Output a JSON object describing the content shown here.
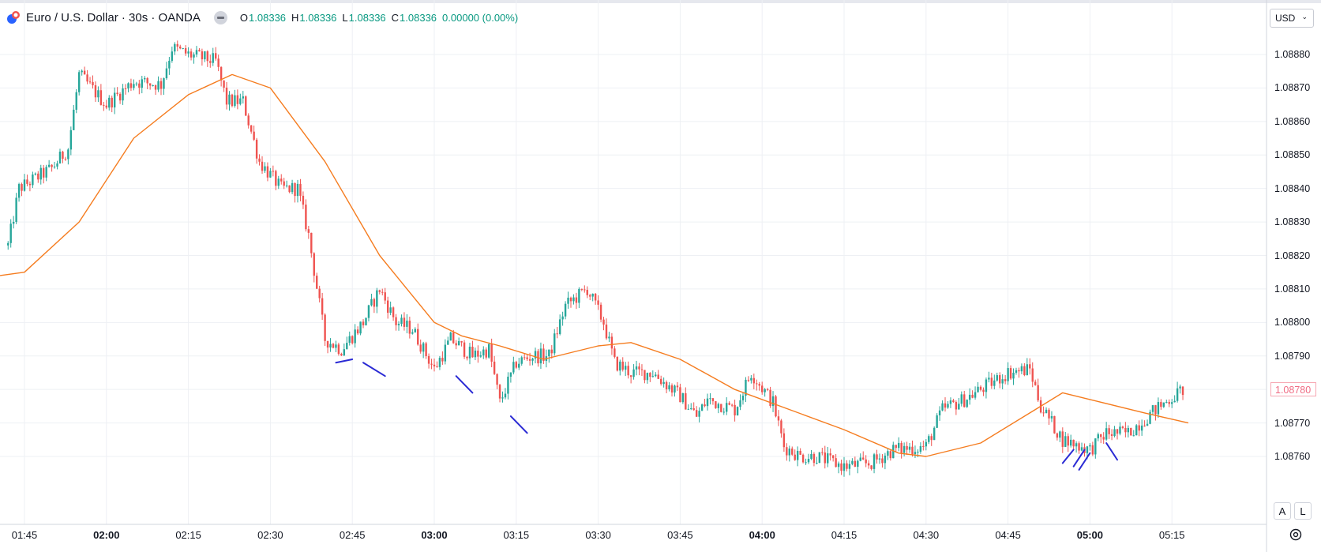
{
  "header": {
    "title": "Euro / U.S. Dollar · 30s · OANDA",
    "ohlc": [
      {
        "label": "O",
        "value": "1.08336"
      },
      {
        "label": "H",
        "value": "1.08336"
      },
      {
        "label": "L",
        "value": "1.08336"
      },
      {
        "label": "C",
        "value": "1.08336"
      },
      {
        "label": "",
        "value": "0.00000 (0.00%)"
      }
    ]
  },
  "currency": {
    "label": "USD"
  },
  "buttons": {
    "auto": "A",
    "log": "L"
  },
  "current_price": "1.08780",
  "colors": {
    "up": "#26a69a",
    "down": "#ef5350",
    "ma": "#f57c1f",
    "annotation": "#2a2ad4",
    "grid": "#eef0f4",
    "price_tag": "#f06c84"
  },
  "chart_data": {
    "type": "candlestick",
    "yticks": [
      "1.08880",
      "1.08870",
      "1.08860",
      "1.08850",
      "1.08840",
      "1.08830",
      "1.08820",
      "1.08810",
      "1.08800",
      "1.08790",
      "1.08780",
      "1.08770",
      "1.08760"
    ],
    "xticks": [
      {
        "label": "01:45",
        "bold": false
      },
      {
        "label": "02:00",
        "bold": true
      },
      {
        "label": "02:15",
        "bold": false
      },
      {
        "label": "02:30",
        "bold": false
      },
      {
        "label": "02:45",
        "bold": false
      },
      {
        "label": "03:00",
        "bold": true
      },
      {
        "label": "03:15",
        "bold": false
      },
      {
        "label": "03:30",
        "bold": false
      },
      {
        "label": "03:45",
        "bold": false
      },
      {
        "label": "04:00",
        "bold": true
      },
      {
        "label": "04:15",
        "bold": false
      },
      {
        "label": "04:30",
        "bold": false
      },
      {
        "label": "04:45",
        "bold": false
      },
      {
        "label": "05:00",
        "bold": true
      },
      {
        "label": "05:15",
        "bold": false
      }
    ],
    "price_path": [
      [
        "01:42",
        1.08823
      ],
      [
        "01:44",
        1.0884
      ],
      [
        "01:50",
        1.08846
      ],
      [
        "01:53",
        1.08852
      ],
      [
        "01:55",
        1.08874
      ],
      [
        "02:00",
        1.08865
      ],
      [
        "02:05",
        1.08872
      ],
      [
        "02:10",
        1.08871
      ],
      [
        "02:12",
        1.08882
      ],
      [
        "02:15",
        1.0888
      ],
      [
        "02:20",
        1.08878
      ],
      [
        "02:22",
        1.08866
      ],
      [
        "02:25",
        1.08866
      ],
      [
        "02:28",
        1.08848
      ],
      [
        "02:32",
        1.0884
      ],
      [
        "02:35",
        1.0884
      ],
      [
        "02:37",
        1.08826
      ],
      [
        "02:40",
        1.08795
      ],
      [
        "02:43",
        1.08792
      ],
      [
        "02:47",
        1.088
      ],
      [
        "02:50",
        1.0881
      ],
      [
        "02:53",
        1.088
      ],
      [
        "02:56",
        1.08798
      ],
      [
        "03:00",
        1.08786
      ],
      [
        "03:03",
        1.08795
      ],
      [
        "03:07",
        1.0879
      ],
      [
        "03:10",
        1.08792
      ],
      [
        "03:12",
        1.08776
      ],
      [
        "03:15",
        1.08788
      ],
      [
        "03:18",
        1.0879
      ],
      [
        "03:21",
        1.0879
      ],
      [
        "03:24",
        1.08805
      ],
      [
        "03:28",
        1.0881
      ],
      [
        "03:31",
        1.088
      ],
      [
        "03:33",
        1.08788
      ],
      [
        "03:36",
        1.08785
      ],
      [
        "03:40",
        1.08785
      ],
      [
        "03:45",
        1.08778
      ],
      [
        "03:48",
        1.08772
      ],
      [
        "03:50",
        1.08777
      ],
      [
        "03:55",
        1.08774
      ],
      [
        "03:58",
        1.08785
      ],
      [
        "04:02",
        1.08776
      ],
      [
        "04:04",
        1.08763
      ],
      [
        "04:07",
        1.0876
      ],
      [
        "04:10",
        1.0876
      ],
      [
        "04:15",
        1.08757
      ],
      [
        "04:20",
        1.08758
      ],
      [
        "04:24",
        1.08762
      ],
      [
        "04:30",
        1.08763
      ],
      [
        "04:33",
        1.08774
      ],
      [
        "04:37",
        1.08777
      ],
      [
        "04:40",
        1.0878
      ],
      [
        "04:45",
        1.08785
      ],
      [
        "04:49",
        1.08786
      ],
      [
        "04:51",
        1.08775
      ],
      [
        "04:55",
        1.08765
      ],
      [
        "05:00",
        1.08762
      ],
      [
        "05:03",
        1.08767
      ],
      [
        "05:07",
        1.08767
      ],
      [
        "05:12",
        1.08774
      ],
      [
        "05:17",
        1.0878
      ]
    ],
    "moving_average": [
      [
        "01:45",
        1.08815
      ],
      [
        "01:55",
        1.0883
      ],
      [
        "02:05",
        1.08855
      ],
      [
        "02:15",
        1.08868
      ],
      [
        "02:23",
        1.08874
      ],
      [
        "02:30",
        1.0887
      ],
      [
        "02:40",
        1.08848
      ],
      [
        "02:50",
        1.0882
      ],
      [
        "03:00",
        1.088
      ],
      [
        "03:05",
        1.08796
      ],
      [
        "03:12",
        1.08793
      ],
      [
        "03:20",
        1.08789
      ],
      [
        "03:30",
        1.08793
      ],
      [
        "03:36",
        1.08794
      ],
      [
        "03:45",
        1.08789
      ],
      [
        "03:55",
        1.0878
      ],
      [
        "04:05",
        1.08774
      ],
      [
        "04:15",
        1.08768
      ],
      [
        "04:25",
        1.08761
      ],
      [
        "04:30",
        1.0876
      ],
      [
        "04:40",
        1.08764
      ],
      [
        "04:50",
        1.08774
      ],
      [
        "04:55",
        1.08779
      ],
      [
        "05:00",
        1.08777
      ],
      [
        "05:10",
        1.08773
      ],
      [
        "05:18",
        1.0877
      ]
    ],
    "annotations": [
      {
        "from": [
          "02:42",
          1.08788
        ],
        "to": [
          "02:45",
          1.08789
        ]
      },
      {
        "from": [
          "02:47",
          1.08788
        ],
        "to": [
          "02:51",
          1.08784
        ]
      },
      {
        "from": [
          "03:04",
          1.08784
        ],
        "to": [
          "03:07",
          1.08779
        ]
      },
      {
        "from": [
          "03:14",
          1.08772
        ],
        "to": [
          "03:17",
          1.08767
        ]
      },
      {
        "from": [
          "04:55",
          1.08758
        ],
        "to": [
          "04:57",
          1.08762
        ]
      },
      {
        "from": [
          "04:57",
          1.08757
        ],
        "to": [
          "04:59",
          1.08762
        ]
      },
      {
        "from": [
          "04:58",
          1.08756
        ],
        "to": [
          "05:00",
          1.08761
        ]
      },
      {
        "from": [
          "05:03",
          1.08764
        ],
        "to": [
          "05:05",
          1.08759
        ]
      }
    ],
    "ylim": [
      1.08754,
      1.08887
    ],
    "grid": true
  }
}
